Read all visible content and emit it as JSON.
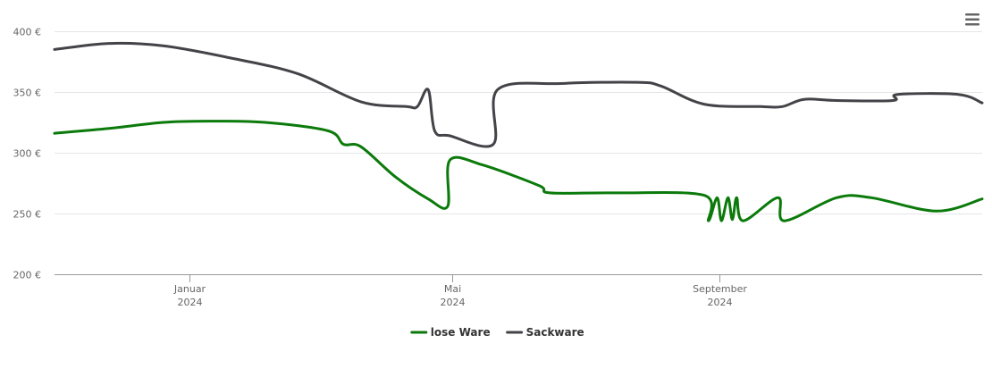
{
  "menu": {
    "icon": "hamburger-menu-icon"
  },
  "chart_data": {
    "type": "line",
    "xlabel": "",
    "ylabel": "",
    "x_range": [
      "2023-10-31",
      "2024-12-31"
    ],
    "ylim": [
      200,
      400
    ],
    "y_ticks": [
      200,
      250,
      300,
      350,
      400
    ],
    "y_unit": "€",
    "grid": true,
    "legend_position": "bottom-center",
    "x_ticks": [
      {
        "date": "2024-01-01",
        "label_line1": "Januar",
        "label_line2": "2024"
      },
      {
        "date": "2024-05-01",
        "label_line1": "Mai",
        "label_line2": "2024"
      },
      {
        "date": "2024-09-01",
        "label_line1": "September",
        "label_line2": "2024"
      }
    ],
    "series": [
      {
        "name": "lose Ware",
        "color": "#0b7a0b",
        "points": [
          [
            "2023-10-31",
            316
          ],
          [
            "2023-11-25",
            320
          ],
          [
            "2023-12-20",
            325
          ],
          [
            "2024-01-10",
            326
          ],
          [
            "2024-02-05",
            325
          ],
          [
            "2024-03-05",
            318
          ],
          [
            "2024-03-12",
            307
          ],
          [
            "2024-03-20",
            305
          ],
          [
            "2024-04-05",
            280
          ],
          [
            "2024-04-20",
            262
          ],
          [
            "2024-04-29",
            256
          ],
          [
            "2024-04-30",
            294
          ],
          [
            "2024-05-15",
            290
          ],
          [
            "2024-06-10",
            273
          ],
          [
            "2024-06-15",
            267
          ],
          [
            "2024-07-15",
            267
          ],
          [
            "2024-08-25",
            265
          ],
          [
            "2024-08-27",
            244
          ],
          [
            "2024-08-31",
            263
          ],
          [
            "2024-09-02",
            244
          ],
          [
            "2024-09-05",
            263
          ],
          [
            "2024-09-07",
            245
          ],
          [
            "2024-09-09",
            263
          ],
          [
            "2024-09-12",
            244
          ],
          [
            "2024-09-28",
            263
          ],
          [
            "2024-10-01",
            244
          ],
          [
            "2024-10-25",
            263
          ],
          [
            "2024-11-10",
            263
          ],
          [
            "2024-12-10",
            252
          ],
          [
            "2024-12-31",
            262
          ]
        ]
      },
      {
        "name": "Sackware",
        "color": "#434348",
        "points": [
          [
            "2023-10-31",
            385
          ],
          [
            "2023-11-25",
            390
          ],
          [
            "2023-12-20",
            388
          ],
          [
            "2024-01-20",
            378
          ],
          [
            "2024-02-20",
            365
          ],
          [
            "2024-03-20",
            342
          ],
          [
            "2024-04-10",
            338
          ],
          [
            "2024-04-15",
            338
          ],
          [
            "2024-04-20",
            352
          ],
          [
            "2024-04-23",
            318
          ],
          [
            "2024-04-30",
            314
          ],
          [
            "2024-05-20",
            307
          ],
          [
            "2024-05-22",
            352
          ],
          [
            "2024-06-20",
            357
          ],
          [
            "2024-07-25",
            358
          ],
          [
            "2024-08-05",
            355
          ],
          [
            "2024-08-25",
            340
          ],
          [
            "2024-09-20",
            338
          ],
          [
            "2024-09-30",
            338
          ],
          [
            "2024-10-10",
            344
          ],
          [
            "2024-10-25",
            343
          ],
          [
            "2024-11-20",
            343
          ],
          [
            "2024-11-22",
            348
          ],
          [
            "2024-12-20",
            348
          ],
          [
            "2024-12-31",
            341
          ]
        ]
      }
    ]
  }
}
